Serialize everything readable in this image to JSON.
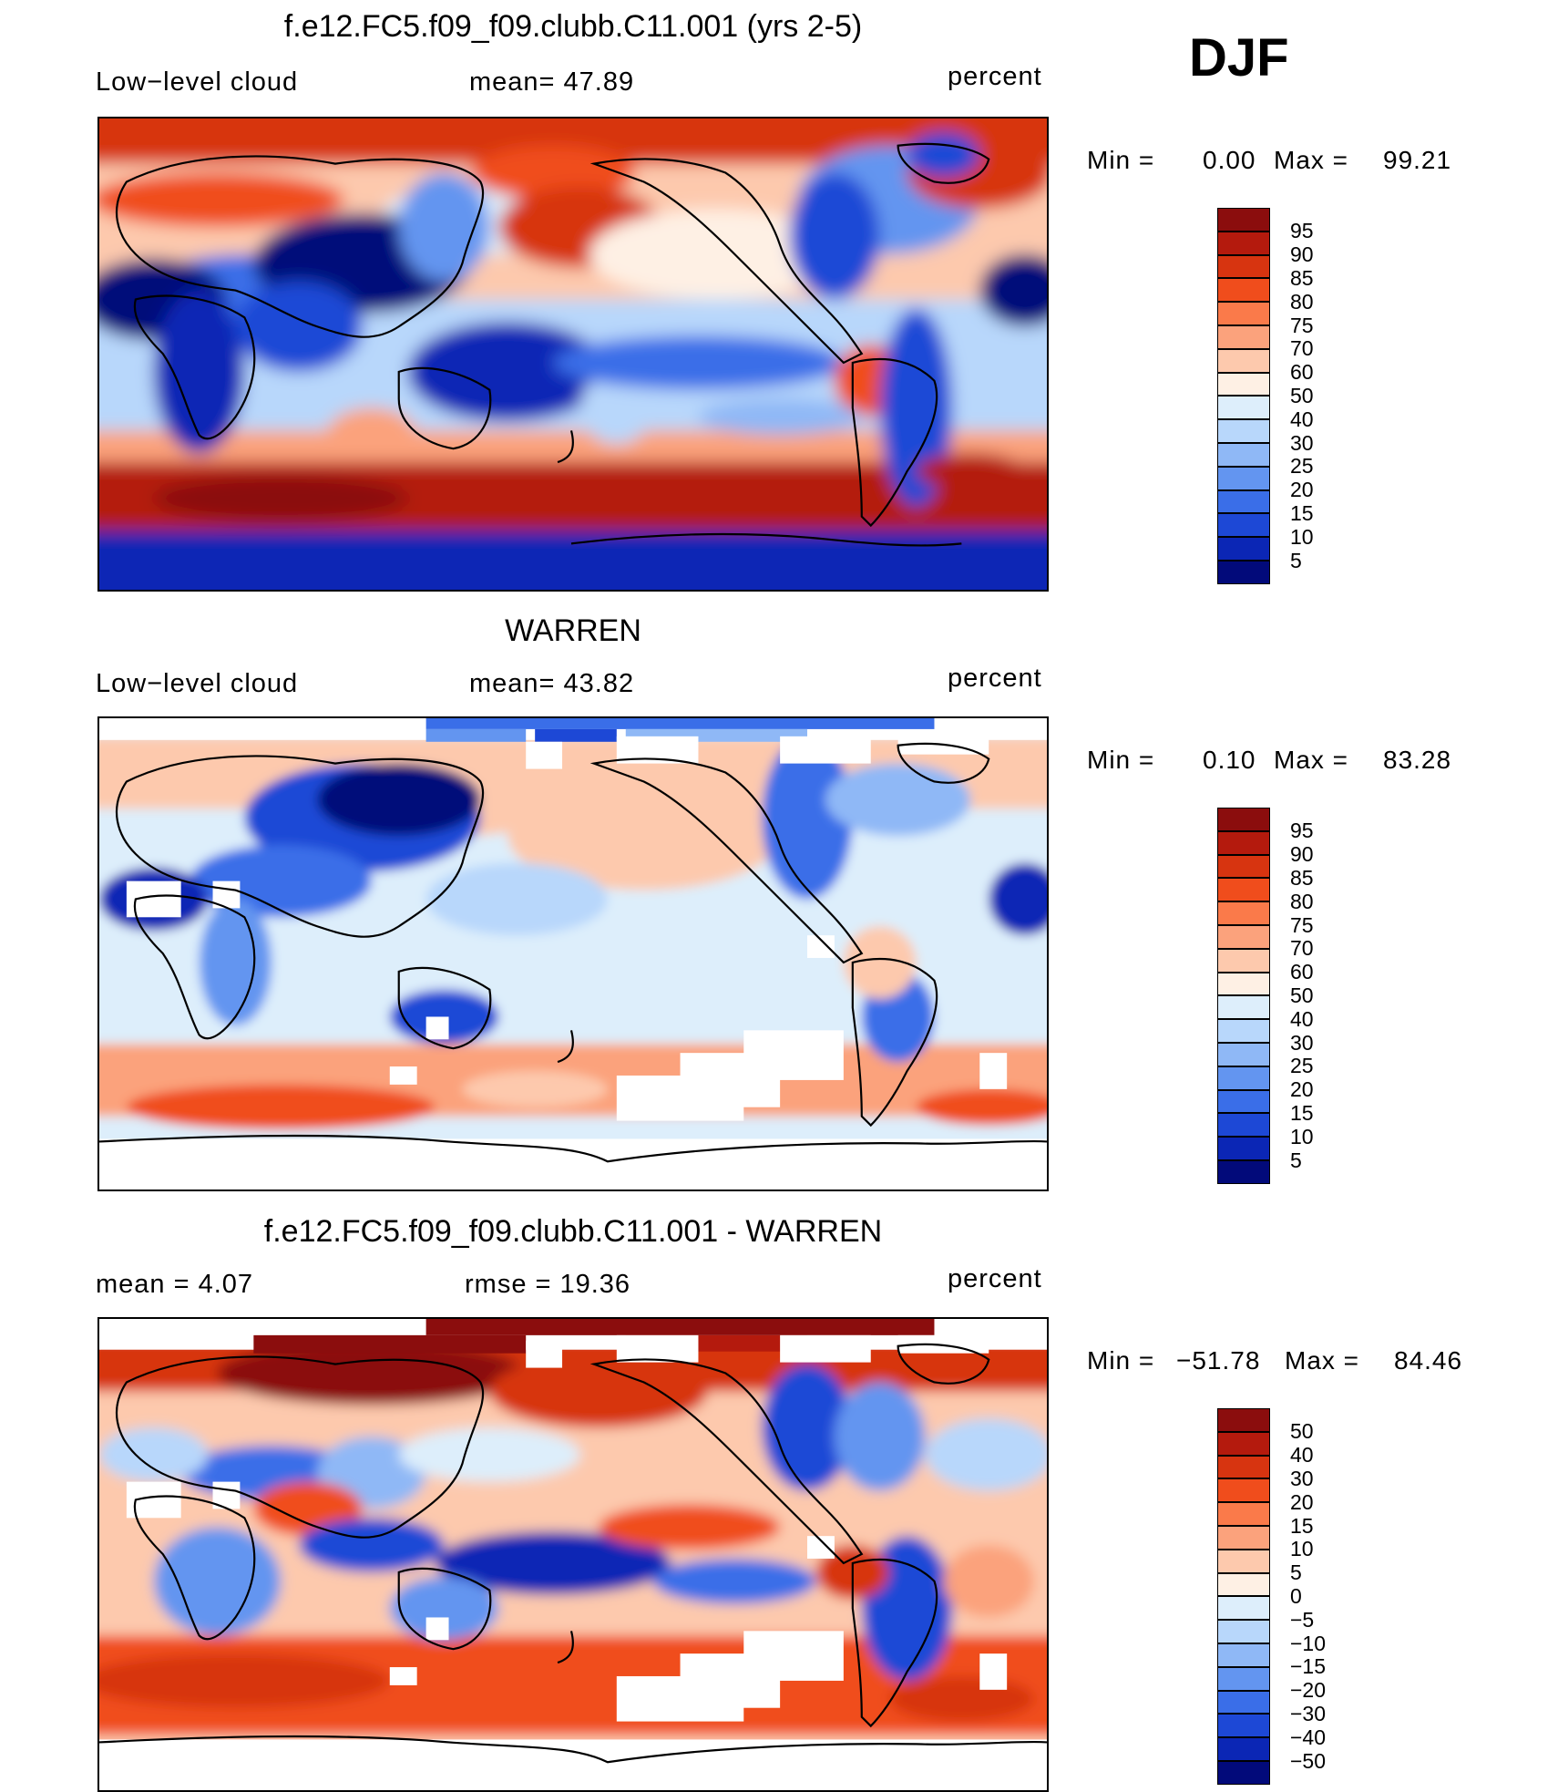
{
  "season": "DJF",
  "panels": [
    {
      "title": "f.e12.FC5.f09_f09.clubb.C11.001 (yrs 2-5)",
      "left_label": "Low−level cloud",
      "middle_label": "mean=   47.89",
      "units": "percent",
      "min_label": "Min  =",
      "min_value": "0.00",
      "max_label": "Max  =",
      "max_value": "99.21",
      "field": "model_low_cloud"
    },
    {
      "title": "WARREN",
      "left_label": "Low−level cloud",
      "middle_label": "mean=   43.82",
      "units": "percent",
      "min_label": "Min  =",
      "min_value": "0.10",
      "max_label": "Max  =",
      "max_value": "83.28",
      "field": "obs_low_cloud"
    },
    {
      "title": "f.e12.FC5.f09_f09.clubb.C11.001 - WARREN",
      "left_label": "mean  =     4.07",
      "middle_label": "rmse  =    19.36",
      "units": "percent",
      "min_label": "Min  =",
      "min_value": "−51.78",
      "max_label": "Max  =",
      "max_value": "84.46",
      "field": "difference"
    }
  ],
  "colorbars": {
    "absolute": {
      "labels": [
        "95",
        "90",
        "85",
        "80",
        "75",
        "70",
        "60",
        "50",
        "40",
        "30",
        "25",
        "20",
        "15",
        "10",
        "5"
      ],
      "colors": [
        "#8b0d0d",
        "#b41a0d",
        "#d73410",
        "#f04d1c",
        "#fa7a4a",
        "#fba27c",
        "#fdc9ad",
        "#fef0e4",
        "#ddeefb",
        "#b8d7fb",
        "#8fb8f6",
        "#6395f0",
        "#3a6ee8",
        "#1d48d6",
        "#0b26b5",
        "#020a7a"
      ]
    },
    "difference": {
      "labels": [
        "50",
        "40",
        "30",
        "20",
        "15",
        "10",
        "5",
        "0",
        "−5",
        "−10",
        "−15",
        "−20",
        "−30",
        "−40",
        "−50"
      ],
      "colors": [
        "#8b0d0d",
        "#b41a0d",
        "#d73410",
        "#f04d1c",
        "#fa7a4a",
        "#fba27c",
        "#fdc9ad",
        "#fef0e4",
        "#ddeefb",
        "#b8d7fb",
        "#8fb8f6",
        "#6395f0",
        "#3a6ee8",
        "#1d48d6",
        "#0b26b5",
        "#020a7a"
      ]
    }
  }
}
